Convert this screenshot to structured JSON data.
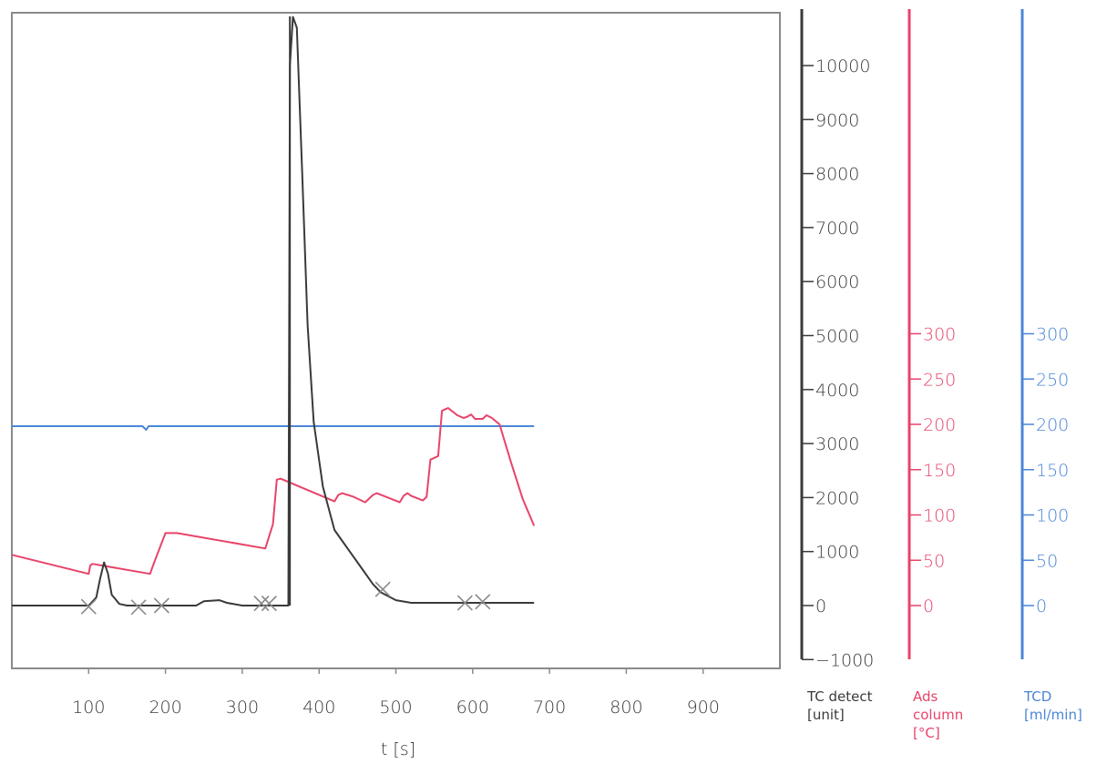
{
  "chart_data": {
    "type": "line",
    "xlabel": "t [s]",
    "x_ticks": [
      100,
      200,
      300,
      400,
      500,
      600,
      700,
      800,
      900
    ],
    "xlim": [
      0,
      1000
    ],
    "axes": [
      {
        "id": "tc",
        "label_lines": [
          "TC detect",
          "[unit]"
        ],
        "color": "#3a3a3a",
        "ticks": [
          -1000,
          0,
          1000,
          2000,
          3000,
          4000,
          5000,
          6000,
          7000,
          8000,
          9000,
          10000
        ],
        "ylim": [
          -1000,
          10000
        ]
      },
      {
        "id": "ads",
        "label_lines": [
          "Ads",
          "column",
          "[°C]"
        ],
        "color": "#e8436a",
        "ticks": [
          0,
          50,
          100,
          150,
          200,
          250,
          300
        ],
        "ylim": [
          -25,
          325
        ]
      },
      {
        "id": "tcd",
        "label_lines": [
          "TCD",
          "[ml/min]"
        ],
        "color": "#4a86d6",
        "ticks": [
          0,
          50,
          100,
          150,
          200,
          250,
          300
        ],
        "ylim": [
          -25,
          325
        ]
      }
    ],
    "series": [
      {
        "axis": "tcd",
        "color": "#4a86d6",
        "points": [
          [
            0,
            198
          ],
          [
            170,
            198
          ],
          [
            175,
            194
          ],
          [
            178,
            198
          ],
          [
            300,
            198
          ],
          [
            500,
            198
          ],
          [
            680,
            198
          ]
        ]
      },
      {
        "axis": "ads",
        "color": "#e8436a",
        "points": [
          [
            0,
            56
          ],
          [
            100,
            35
          ],
          [
            102,
            44
          ],
          [
            105,
            46
          ],
          [
            180,
            35
          ],
          [
            185,
            47
          ],
          [
            200,
            80
          ],
          [
            215,
            80
          ],
          [
            330,
            63
          ],
          [
            340,
            90
          ],
          [
            345,
            139
          ],
          [
            350,
            140
          ],
          [
            420,
            115
          ],
          [
            425,
            122
          ],
          [
            430,
            124
          ],
          [
            445,
            120
          ],
          [
            460,
            114
          ],
          [
            470,
            122
          ],
          [
            475,
            124
          ],
          [
            490,
            119
          ],
          [
            505,
            114
          ],
          [
            510,
            121
          ],
          [
            515,
            124
          ],
          [
            520,
            121
          ],
          [
            535,
            116
          ],
          [
            540,
            120
          ],
          [
            545,
            161
          ],
          [
            555,
            165
          ],
          [
            560,
            215
          ],
          [
            568,
            218
          ],
          [
            580,
            210
          ],
          [
            588,
            207
          ],
          [
            592,
            208
          ],
          [
            598,
            211
          ],
          [
            603,
            206
          ],
          [
            613,
            206
          ],
          [
            618,
            210
          ],
          [
            625,
            207
          ],
          [
            635,
            200
          ],
          [
            650,
            158
          ],
          [
            665,
            118
          ],
          [
            680,
            88
          ]
        ]
      },
      {
        "axis": "tc",
        "color": "#3a3a3a",
        "points": [
          [
            0,
            0
          ],
          [
            100,
            0
          ],
          [
            110,
            150
          ],
          [
            115,
            500
          ],
          [
            120,
            800
          ],
          [
            125,
            600
          ],
          [
            130,
            200
          ],
          [
            140,
            30
          ],
          [
            150,
            0
          ],
          [
            240,
            0
          ],
          [
            250,
            80
          ],
          [
            270,
            100
          ],
          [
            280,
            50
          ],
          [
            300,
            0
          ],
          [
            360,
            0
          ],
          [
            362,
            10000
          ],
          [
            366,
            10900
          ],
          [
            371,
            10700
          ],
          [
            378,
            8000
          ],
          [
            385,
            5200
          ],
          [
            393,
            3400
          ],
          [
            405,
            2200
          ],
          [
            420,
            1400
          ],
          [
            440,
            1000
          ],
          [
            455,
            700
          ],
          [
            470,
            400
          ],
          [
            480,
            250
          ],
          [
            500,
            100
          ],
          [
            520,
            50
          ],
          [
            540,
            50
          ],
          [
            560,
            50
          ],
          [
            600,
            50
          ],
          [
            680,
            50
          ]
        ]
      }
    ],
    "markers": [
      [
        100,
        -20
      ],
      [
        165,
        -30
      ],
      [
        195,
        0
      ],
      [
        325,
        40
      ],
      [
        335,
        40
      ],
      [
        483,
        300
      ],
      [
        590,
        50
      ],
      [
        613,
        70
      ]
    ]
  }
}
